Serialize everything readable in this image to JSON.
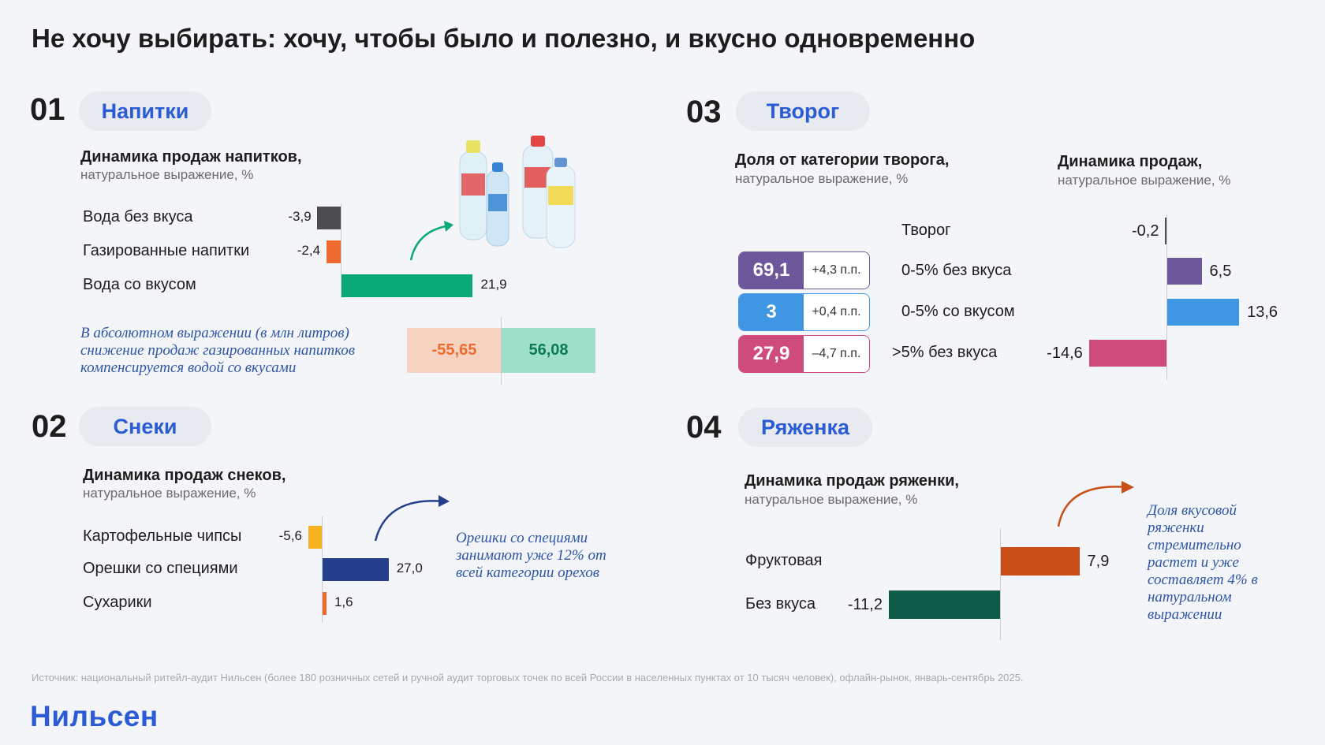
{
  "title": "Не хочу выбирать: хочу, чтобы было и полезно, и вкусно одновременно",
  "source": "Источник: национальный ритейл-аудит Нильсен (более 180 розничных сетей и ручной аудит торговых точек по всей России в населенных пунктах от 10 тысяч человек), офлайн-рынок, январь-сентябрь 2025.",
  "logo": "Нильсен",
  "colors": {
    "accent": "#2b5cd6",
    "dark": "#4d4d4f",
    "orange": "#ee6b2f",
    "green": "#0aa877",
    "navy": "#253f8c",
    "amber": "#f9b21f",
    "purple": "#6c579a",
    "blue": "#3f96e3",
    "pink": "#ce4b7c",
    "rust": "#c94f18",
    "teal": "#0e5c47"
  },
  "sections": {
    "s1": {
      "num": "01",
      "name": "Напитки",
      "chart_title": "Динамика продаж напитков,",
      "chart_note": "натуральное выражение, %",
      "note": "В абсолютном выражении (в млн литров) снижение продаж газированных напитков компенсируется водой со вкусами",
      "neg_value": "-55,65",
      "pos_value": "56,08",
      "image_icon": "water-bottles-icon"
    },
    "s2": {
      "num": "02",
      "name": "Снеки",
      "chart_title": "Динамика продаж снеков,",
      "chart_note": "натуральное выражение, %",
      "note": "Орешки со специями занимают уже 12% от всей категории орехов"
    },
    "s3": {
      "num": "03",
      "name": "Творог",
      "share_title": "Доля от категории творога,",
      "share_note": "натуральное выражение, %",
      "chart_title": "Динамика продаж,",
      "chart_note": "натуральное выражение, %",
      "shares": [
        {
          "value": "69,1",
          "change": "+4,3 п.п."
        },
        {
          "value": "3",
          "change": "+0,4 п.п."
        },
        {
          "value": "27,9",
          "change": "–4,7 п.п."
        }
      ]
    },
    "s4": {
      "num": "04",
      "name": "Ряженка",
      "chart_title": "Динамика продаж ряженки,",
      "chart_note": "натуральное выражение, %",
      "note": "Доля вкусовой ряженки стремительно растет и уже составляет 4% в натуральном выражении"
    }
  },
  "chart_data": [
    {
      "type": "bar",
      "orientation": "horizontal",
      "title": "Динамика продаж напитков,",
      "categories": [
        "Вода без вкуса",
        "Газированные напитки",
        "Вода со вкусом"
      ],
      "values": [
        -3.9,
        -2.4,
        21.9
      ],
      "labels": [
        "-3,9",
        "-2,4",
        "21,9"
      ]
    },
    {
      "type": "bar",
      "orientation": "horizontal",
      "title": "Динамика продаж снеков,",
      "categories": [
        "Картофельные чипсы",
        "Орешки со специями",
        "Сухарики"
      ],
      "values": [
        -5.6,
        27.0,
        1.6
      ],
      "labels": [
        "-5,6",
        "27,0",
        "1,6"
      ]
    },
    {
      "type": "bar",
      "orientation": "horizontal",
      "title": "Динамика продаж,",
      "categories": [
        "Творог",
        "0-5% без вкуса",
        "0-5% со вкусом",
        ">5% без вкуса"
      ],
      "values": [
        -0.2,
        6.5,
        13.6,
        -14.6
      ],
      "labels": [
        "-0,2",
        "6,5",
        "13,6",
        "-14,6"
      ]
    },
    {
      "type": "bar",
      "orientation": "horizontal",
      "title": "Динамика продаж ряженки,",
      "categories": [
        "Фруктовая",
        "Без вкуса"
      ],
      "values": [
        7.9,
        -11.2
      ],
      "labels": [
        "7,9",
        "-11,2"
      ]
    }
  ]
}
